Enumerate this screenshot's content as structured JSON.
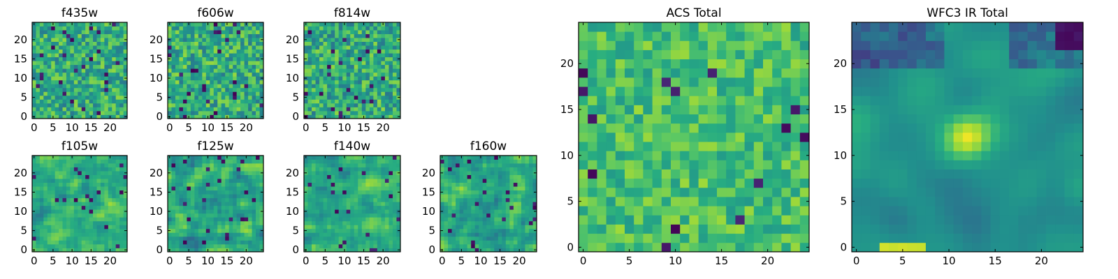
{
  "figure": {
    "colormap": "viridis",
    "colors": {
      "low": "#440154",
      "mid": "#21918c",
      "high": "#fde725",
      "axis": "#000000",
      "background": "#ffffff"
    }
  },
  "chart_data": [
    {
      "type": "heatmap",
      "title": "f435w",
      "grid": [
        25,
        25
      ],
      "xlim": [
        -0.5,
        24.5
      ],
      "ylim": [
        -0.5,
        24.5
      ],
      "xticks": [
        0,
        5,
        10,
        15,
        20
      ],
      "yticks": [
        0,
        5,
        10,
        15,
        20
      ],
      "texture": "noisy",
      "seed": 435,
      "mean": 0.62,
      "spread": 0.22,
      "dark_fraction": 0.04
    },
    {
      "type": "heatmap",
      "title": "f606w",
      "grid": [
        25,
        25
      ],
      "xlim": [
        -0.5,
        24.5
      ],
      "ylim": [
        -0.5,
        24.5
      ],
      "xticks": [
        0,
        5,
        10,
        15,
        20
      ],
      "yticks": [
        0,
        5,
        10,
        15,
        20
      ],
      "texture": "noisy",
      "seed": 606,
      "mean": 0.63,
      "spread": 0.22,
      "dark_fraction": 0.03
    },
    {
      "type": "heatmap",
      "title": "f814w",
      "grid": [
        25,
        25
      ],
      "xlim": [
        -0.5,
        24.5
      ],
      "ylim": [
        -0.5,
        24.5
      ],
      "xticks": [
        0,
        5,
        10,
        15,
        20
      ],
      "yticks": [
        0,
        5,
        10,
        15,
        20
      ],
      "texture": "noisy",
      "seed": 814,
      "mean": 0.62,
      "spread": 0.22,
      "dark_fraction": 0.03
    },
    {
      "type": "heatmap",
      "title": "f105w",
      "grid": [
        25,
        25
      ],
      "xlim": [
        -0.5,
        24.5
      ],
      "ylim": [
        -0.5,
        24.5
      ],
      "xticks": [
        0,
        5,
        10,
        15,
        20
      ],
      "yticks": [
        0,
        5,
        10,
        15,
        20
      ],
      "texture": "smooth",
      "seed": 105,
      "mean": 0.64,
      "spread": 0.22,
      "dark_fraction": 0.03
    },
    {
      "type": "heatmap",
      "title": "f125w",
      "grid": [
        25,
        25
      ],
      "xlim": [
        -0.5,
        24.5
      ],
      "ylim": [
        -0.5,
        24.5
      ],
      "xticks": [
        0,
        5,
        10,
        15,
        20
      ],
      "yticks": [
        0,
        5,
        10,
        15,
        20
      ],
      "texture": "smooth",
      "seed": 125,
      "mean": 0.6,
      "spread": 0.25,
      "dark_fraction": 0.03
    },
    {
      "type": "heatmap",
      "title": "f140w",
      "grid": [
        25,
        25
      ],
      "xlim": [
        -0.5,
        24.5
      ],
      "ylim": [
        -0.5,
        24.5
      ],
      "xticks": [
        0,
        5,
        10,
        15,
        20
      ],
      "yticks": [
        0,
        5,
        10,
        15,
        20
      ],
      "texture": "smooth",
      "seed": 140,
      "mean": 0.64,
      "spread": 0.22,
      "dark_fraction": 0.03
    },
    {
      "type": "heatmap",
      "title": "f160w",
      "grid": [
        25,
        25
      ],
      "xlim": [
        -0.5,
        24.5
      ],
      "ylim": [
        -0.5,
        24.5
      ],
      "xticks": [
        0,
        5,
        10,
        15,
        20
      ],
      "yticks": [
        0,
        5,
        10,
        15,
        20
      ],
      "texture": "smooth",
      "seed": 160,
      "mean": 0.63,
      "spread": 0.23,
      "dark_fraction": 0.03
    },
    {
      "type": "heatmap",
      "title": "ACS Total",
      "grid": [
        25,
        25
      ],
      "xlim": [
        -0.5,
        24.5
      ],
      "ylim": [
        -0.5,
        24.5
      ],
      "xticks": [
        0,
        5,
        10,
        15,
        20
      ],
      "yticks": [
        0,
        5,
        10,
        15,
        20
      ],
      "texture": "noisy",
      "seed": 777,
      "mean": 0.7,
      "spread": 0.16,
      "dark_fraction": 0.025
    },
    {
      "type": "heatmap",
      "title": "WFC3 IR Total",
      "grid": [
        25,
        25
      ],
      "xlim": [
        -0.5,
        24.5
      ],
      "ylim": [
        -0.5,
        24.5
      ],
      "xticks": [
        0,
        5,
        10,
        15,
        20
      ],
      "yticks": [
        0,
        5,
        10,
        15,
        20
      ],
      "texture": "source",
      "seed": 313,
      "mean": 0.52,
      "spread": 0.12,
      "dark_fraction": 0.0,
      "source_center": [
        12,
        12
      ],
      "source_peak": 0.95,
      "bottom_bright_row": 0,
      "dark_top_region": true
    }
  ]
}
